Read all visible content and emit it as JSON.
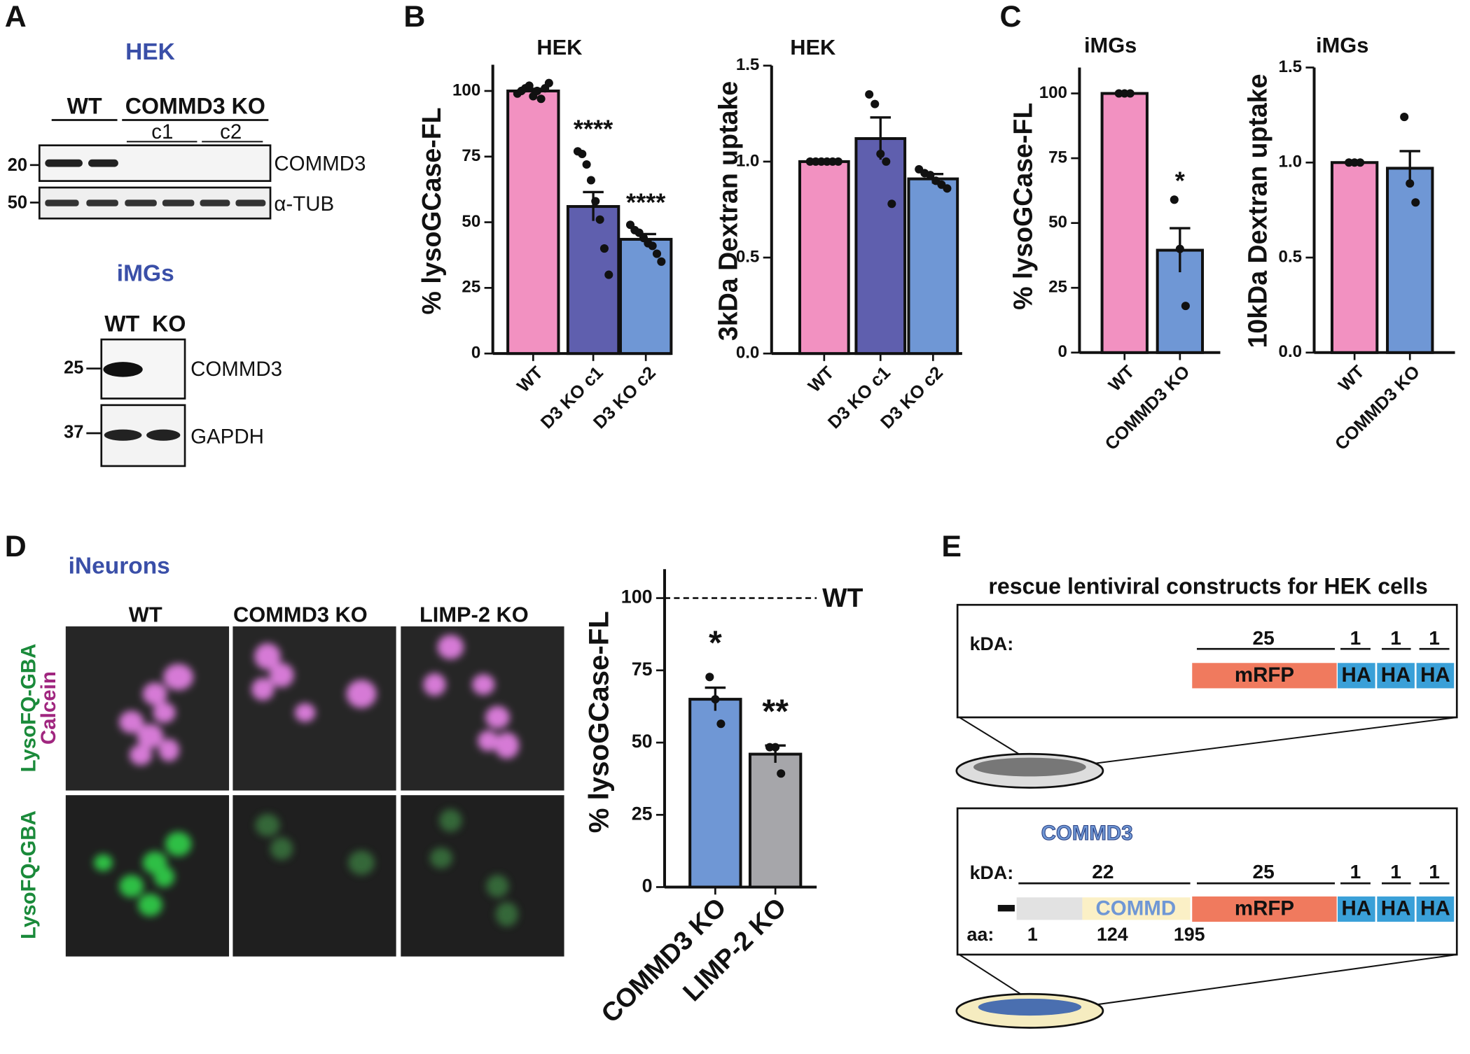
{
  "panel_labels": [
    "A",
    "B",
    "C",
    "D",
    "E"
  ],
  "panel_a": {
    "hek": {
      "title": "HEK",
      "lanes": [
        "WT",
        "COMMD3 KO"
      ],
      "clones": [
        "c1",
        "c2"
      ],
      "markers": [
        20,
        50
      ],
      "proteins": [
        "COMMD3",
        "α-TUB"
      ]
    },
    "imgs": {
      "title": "iMGs",
      "lanes": [
        "WT",
        "KO"
      ],
      "markers": [
        25,
        37
      ],
      "proteins": [
        "COMMD3",
        "GAPDH"
      ]
    }
  },
  "panel_d": {
    "title": "iNeurons",
    "columns": [
      "WT",
      "COMMD3 KO",
      "LIMP-2 KO"
    ],
    "row_labels": [
      [
        "LysoFQ-GBA",
        "Calcein"
      ],
      [
        "LysoFQ-GBA"
      ]
    ]
  },
  "panel_e": {
    "title": "rescue lentiviral constructs for HEK cells",
    "construct_1": {
      "kda_label": "kDA:",
      "kda": [
        25,
        1,
        1,
        1
      ],
      "segments": [
        "mRFP",
        "HA",
        "HA",
        "HA"
      ]
    },
    "construct_2": {
      "name": "COMMD3",
      "kda_label": "kDA:",
      "kda": [
        22,
        25,
        1,
        1,
        1
      ],
      "segments": [
        "COMMD",
        "mRFP",
        "HA",
        "HA",
        "HA"
      ],
      "aa_label": "aa:",
      "aa": [
        1,
        124,
        195
      ]
    }
  },
  "chart_data": [
    {
      "type": "bar",
      "title": "HEK",
      "y_label": "% lysoGCase-FL",
      "categories": [
        "WT",
        "D3 KO c1",
        "D3 KO c2"
      ],
      "values": [
        100,
        56,
        43.5
      ],
      "errors": [
        0.8,
        5.5,
        2
      ],
      "points": [
        [
          99,
          100,
          101,
          102,
          98,
          100,
          97,
          101,
          103
        ],
        [
          77,
          76,
          72,
          66,
          58,
          51,
          40,
          30
        ],
        [
          49,
          47,
          46,
          44,
          42,
          41,
          38,
          35
        ]
      ],
      "significance": [
        null,
        "****",
        "****"
      ],
      "colors": [
        "#f291c1",
        "#5f5fae",
        "#6f97d5"
      ],
      "ylim": [
        0,
        110
      ],
      "yticks": [
        0,
        25,
        50,
        75,
        100
      ]
    },
    {
      "type": "bar",
      "title": "HEK",
      "y_label": "3kDa Dextran uptake",
      "categories": [
        "WT",
        "D3 KO c1",
        "D3 KO c2"
      ],
      "values": [
        1.0,
        1.12,
        0.91
      ],
      "errors": [
        0,
        0.11,
        0.025
      ],
      "points": [
        [
          1,
          1,
          1,
          1,
          1,
          1
        ],
        [
          1.35,
          1.3,
          1.04,
          1.0,
          0.78
        ],
        [
          0.96,
          0.94,
          0.93,
          0.9,
          0.88,
          0.86
        ]
      ],
      "colors": [
        "#f291c1",
        "#5f5fae",
        "#6f97d5"
      ],
      "ylim": [
        0,
        1.5
      ],
      "yticks": [
        {
          "value": 0,
          "label": "0.0"
        },
        {
          "value": 0.5,
          "label": "0.5"
        },
        {
          "value": 1,
          "label": "1.0"
        },
        {
          "value": 1.5,
          "label": "1.5"
        }
      ]
    },
    {
      "type": "bar",
      "title": "iMGs",
      "y_label": "% lysoGCase-FL",
      "categories": [
        "WT",
        "COMMD3 KO"
      ],
      "values": [
        100,
        39.5
      ],
      "errors": [
        0,
        8.5
      ],
      "points": [
        [
          100,
          100,
          100
        ],
        [
          59,
          40,
          18
        ]
      ],
      "significance": [
        null,
        "*"
      ],
      "colors": [
        "#f291c1",
        "#6f97d5"
      ],
      "ylim": [
        0,
        110
      ],
      "yticks": [
        0,
        25,
        50,
        75,
        100
      ]
    },
    {
      "type": "bar",
      "title": "iMGs",
      "y_label": "10kDa Dextran uptake",
      "categories": [
        "WT",
        "COMMD3 KO"
      ],
      "values": [
        1.0,
        0.97
      ],
      "errors": [
        0,
        0.09
      ],
      "points": [
        [
          1,
          1,
          1
        ],
        [
          1.24,
          0.89,
          0.79
        ]
      ],
      "colors": [
        "#f291c1",
        "#6f97d5"
      ],
      "ylim": [
        0,
        1.5
      ],
      "yticks": [
        {
          "value": 0,
          "label": "0.0"
        },
        {
          "value": 0.5,
          "label": "0.5"
        },
        {
          "value": 1,
          "label": "1.0"
        },
        {
          "value": 1.5,
          "label": "1.5"
        }
      ]
    },
    {
      "type": "bar",
      "y_label": "% lysoGCase-FL",
      "categories": [
        "COMMD3 KO",
        "LIMP-2 KO"
      ],
      "values": [
        65,
        46
      ],
      "errors": [
        4,
        3
      ],
      "points": [
        [
          72.7,
          65,
          56.5
        ],
        [
          48.4,
          48.4,
          39.3
        ]
      ],
      "significance": [
        "*",
        "**"
      ],
      "colors": [
        "#6f97d5",
        "#a6a6aa"
      ],
      "ylim": [
        0,
        110
      ],
      "yticks": [
        0,
        25,
        50,
        75,
        100
      ],
      "reference": {
        "value": 100,
        "label": "WT"
      }
    }
  ]
}
